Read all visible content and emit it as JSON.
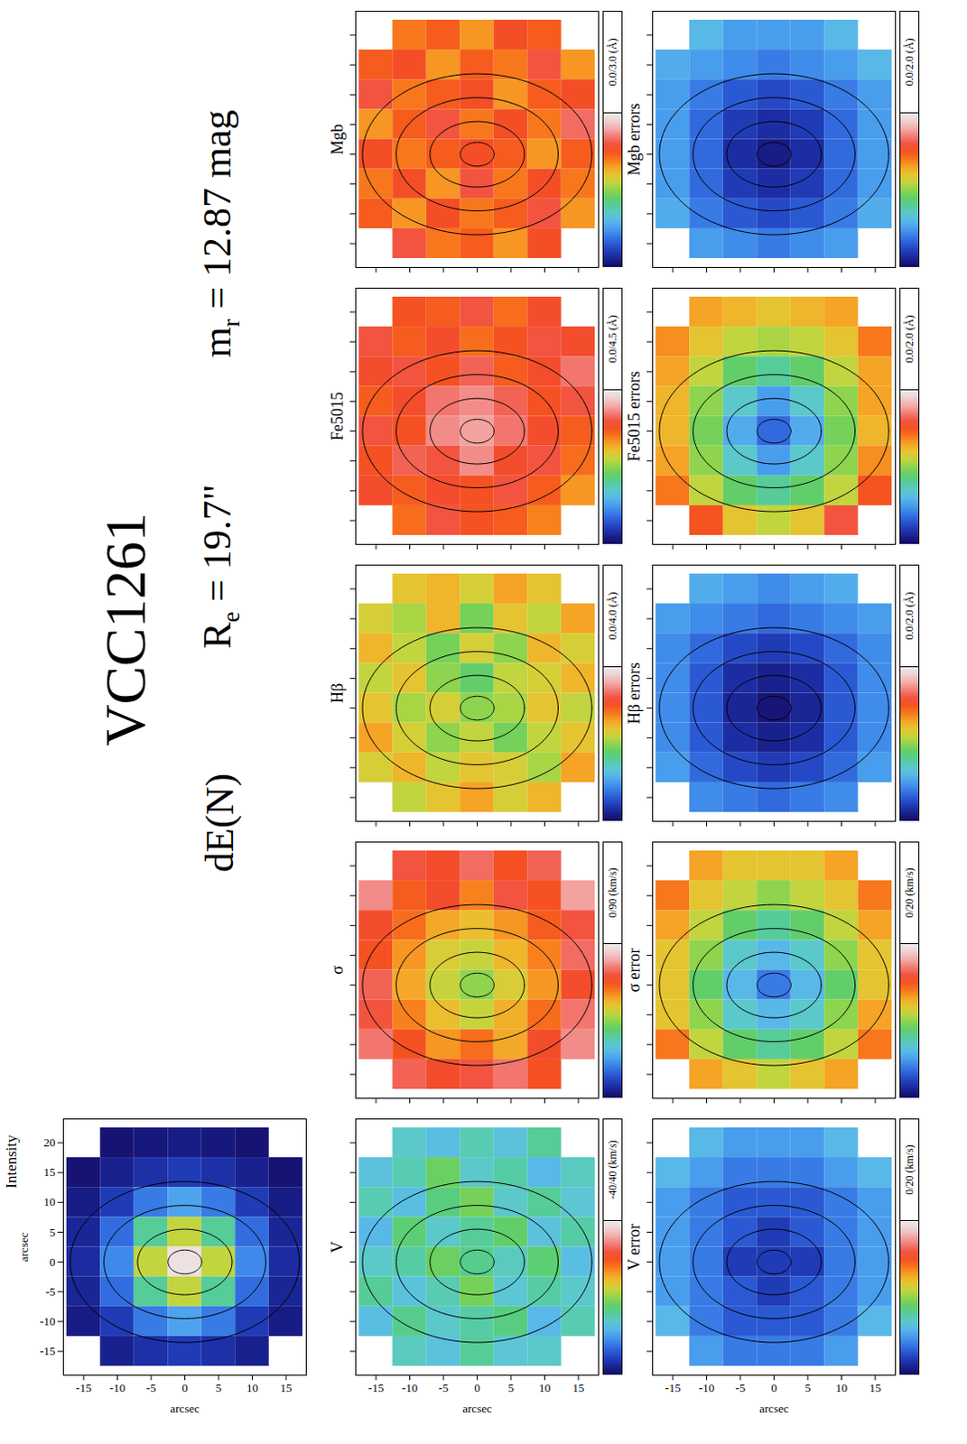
{
  "header": {
    "title": "VCC1261",
    "class": "dE(N)",
    "radius": {
      "symbol": "R",
      "sub": "e",
      "text": " = 19.7\""
    },
    "magnitude": {
      "symbol": "m",
      "sub": "r",
      "text": " = 12.87 mag"
    }
  },
  "contours": [
    {
      "a": 2.5,
      "b": 2
    },
    {
      "a": 7,
      "b": 5.5
    },
    {
      "a": 12,
      "b": 9.5
    },
    {
      "a": 17,
      "b": 13.5
    }
  ],
  "chart_data": [
    {
      "type": "map",
      "title": "Intensity",
      "x": [
        -15,
        -10,
        -5,
        0,
        5,
        10,
        15
      ],
      "y": [
        20,
        15,
        10,
        5,
        0,
        -5,
        -10,
        -15
      ],
      "values": [
        [
          null,
          0.02,
          0.03,
          0.04,
          0.03,
          0.02,
          null
        ],
        [
          0.02,
          0.05,
          0.08,
          0.1,
          0.08,
          0.05,
          0.02
        ],
        [
          0.04,
          0.1,
          0.2,
          0.26,
          0.2,
          0.1,
          0.04
        ],
        [
          0.06,
          0.18,
          0.4,
          0.55,
          0.4,
          0.18,
          0.06
        ],
        [
          0.07,
          0.22,
          0.55,
          0.98,
          0.55,
          0.22,
          0.07
        ],
        [
          0.06,
          0.18,
          0.4,
          0.55,
          0.4,
          0.18,
          0.06
        ],
        [
          0.04,
          0.1,
          0.2,
          0.26,
          0.2,
          0.1,
          0.04
        ],
        [
          null,
          0.05,
          0.08,
          0.1,
          0.08,
          0.05,
          null
        ]
      ],
      "xlim": [
        -18,
        18
      ],
      "ylim": [
        -19,
        24
      ],
      "xticks": [
        -15,
        -10,
        -5,
        0,
        5,
        10,
        15
      ],
      "yticks": [
        -15,
        -10,
        -5,
        0,
        5,
        10,
        15,
        20
      ],
      "xlabel": "arcsec",
      "ylabel": "arcsec",
      "color_range": [
        0,
        1
      ]
    },
    {
      "type": "map",
      "title": "V",
      "x": [
        -15,
        -10,
        -5,
        0,
        5,
        10,
        15
      ],
      "y": [
        20,
        15,
        10,
        5,
        0,
        -5,
        -10,
        -15
      ],
      "values": [
        [
          null,
          -12,
          -15,
          -10,
          -14,
          -8,
          null
        ],
        [
          -14,
          -10,
          -3,
          -12,
          -9,
          -16,
          -11
        ],
        [
          -10,
          -15,
          -6,
          -2,
          -12,
          -8,
          -13
        ],
        [
          -16,
          -5,
          -12,
          -8,
          -4,
          -14,
          -9
        ],
        [
          -12,
          -9,
          -3,
          -7,
          -11,
          -5,
          -15
        ],
        [
          -8,
          -14,
          -10,
          -2,
          -13,
          -9,
          -12
        ],
        [
          -15,
          -7,
          -12,
          -9,
          -6,
          -16,
          -10
        ],
        [
          null,
          -11,
          -14,
          -8,
          -13,
          -12,
          null
        ]
      ],
      "xlim": [
        -18,
        18
      ],
      "ylim": [
        -19,
        24
      ],
      "xticks": [
        -15,
        -10,
        -5,
        0,
        5,
        10,
        15
      ],
      "yticks": [
        -15,
        -10,
        -5,
        0,
        5,
        10,
        15,
        20
      ],
      "xlabel": "arcsec",
      "tick_labels": "x",
      "colorbar": {
        "label": "-40/40 (km/s)",
        "range": [
          -40,
          40
        ]
      }
    },
    {
      "type": "map",
      "title": "σ",
      "x": [
        -15,
        -10,
        -5,
        0,
        5,
        10,
        15
      ],
      "y": [
        20,
        15,
        10,
        5,
        0,
        -5,
        -10,
        -15
      ],
      "values": [
        [
          null,
          72,
          70,
          75,
          68,
          74,
          null
        ],
        [
          78,
          66,
          70,
          62,
          72,
          68,
          80
        ],
        [
          70,
          64,
          58,
          55,
          60,
          66,
          72
        ],
        [
          68,
          60,
          52,
          50,
          56,
          62,
          75
        ],
        [
          74,
          58,
          50,
          45,
          52,
          60,
          70
        ],
        [
          72,
          62,
          55,
          50,
          57,
          64,
          76
        ],
        [
          76,
          68,
          60,
          64,
          58,
          70,
          78
        ],
        [
          null,
          74,
          70,
          72,
          76,
          68,
          null
        ]
      ],
      "xlim": [
        -18,
        18
      ],
      "ylim": [
        -19,
        24
      ],
      "xticks": [
        -15,
        -10,
        -5,
        0,
        5,
        10,
        15
      ],
      "yticks": [
        -15,
        -10,
        -5,
        0,
        5,
        10,
        15,
        20
      ],
      "tick_labels": false,
      "colorbar": {
        "label": "0/90 (km/s)",
        "range": [
          0,
          90
        ]
      }
    },
    {
      "type": "map",
      "title": "Hβ",
      "x": [
        -15,
        -10,
        -5,
        0,
        5,
        10,
        15
      ],
      "y": [
        20,
        15,
        10,
        5,
        0,
        -5,
        -10,
        -15
      ],
      "values": [
        [
          null,
          2.4,
          2.5,
          2.3,
          2.6,
          2.4,
          null
        ],
        [
          2.3,
          2.1,
          2.5,
          1.9,
          2.4,
          2.2,
          2.6
        ],
        [
          2.5,
          2.2,
          1.9,
          2.3,
          2.0,
          2.5,
          2.3
        ],
        [
          2.2,
          2.4,
          2.0,
          1.8,
          2.2,
          2.3,
          2.5
        ],
        [
          2.4,
          2.1,
          2.3,
          2.0,
          2.1,
          2.4,
          2.2
        ],
        [
          2.6,
          2.3,
          2.0,
          2.2,
          1.9,
          2.2,
          2.4
        ],
        [
          2.3,
          2.5,
          2.2,
          2.4,
          2.3,
          2.1,
          2.6
        ],
        [
          null,
          2.2,
          2.4,
          2.6,
          2.3,
          2.5,
          null
        ]
      ],
      "xlim": [
        -18,
        18
      ],
      "ylim": [
        -19,
        24
      ],
      "xticks": [
        -15,
        -10,
        -5,
        0,
        5,
        10,
        15
      ],
      "yticks": [
        -15,
        -10,
        -5,
        0,
        5,
        10,
        15,
        20
      ],
      "tick_labels": false,
      "colorbar": {
        "label": "0.0/4.0 (Å)",
        "range": [
          0,
          4
        ]
      }
    },
    {
      "type": "map",
      "title": "Fe5015",
      "x": [
        -15,
        -10,
        -5,
        0,
        5,
        10,
        15
      ],
      "y": [
        20,
        15,
        10,
        5,
        0,
        -5,
        -10,
        -15
      ],
      "values": [
        [
          null,
          3.4,
          3.3,
          3.6,
          3.2,
          3.5,
          null
        ],
        [
          3.6,
          3.3,
          3.5,
          3.2,
          3.4,
          3.6,
          3.5
        ],
        [
          3.5,
          3.6,
          3.4,
          3.7,
          3.3,
          3.5,
          3.8
        ],
        [
          3.3,
          3.5,
          3.8,
          3.9,
          3.7,
          3.4,
          3.6
        ],
        [
          3.6,
          3.4,
          3.9,
          4.0,
          3.8,
          3.5,
          3.3
        ],
        [
          3.4,
          3.7,
          3.6,
          3.9,
          3.5,
          3.6,
          3.2
        ],
        [
          3.5,
          3.3,
          3.5,
          3.4,
          3.6,
          3.3,
          3.0
        ],
        [
          null,
          3.2,
          3.6,
          3.4,
          3.3,
          3.1,
          null
        ]
      ],
      "xlim": [
        -18,
        18
      ],
      "ylim": [
        -19,
        24
      ],
      "xticks": [
        -15,
        -10,
        -5,
        0,
        5,
        10,
        15
      ],
      "yticks": [
        -15,
        -10,
        -5,
        0,
        5,
        10,
        15,
        20
      ],
      "tick_labels": false,
      "colorbar": {
        "label": "0.0/4.5 (Å)",
        "range": [
          0,
          4.5
        ]
      }
    },
    {
      "type": "map",
      "title": "Mgb",
      "x": [
        -15,
        -10,
        -5,
        0,
        5,
        10,
        15
      ],
      "y": [
        20,
        15,
        10,
        5,
        0,
        -5,
        -10,
        -15
      ],
      "values": [
        [
          null,
          2.1,
          2.2,
          2.0,
          2.3,
          2.2,
          null
        ],
        [
          2.2,
          2.3,
          2.0,
          2.2,
          2.1,
          2.4,
          2.0
        ],
        [
          2.4,
          2.1,
          2.2,
          2.3,
          2.0,
          2.2,
          2.3
        ],
        [
          2.0,
          2.2,
          2.4,
          2.1,
          2.3,
          2.1,
          2.5
        ],
        [
          2.3,
          2.1,
          2.2,
          2.3,
          2.2,
          2.0,
          2.2
        ],
        [
          2.1,
          2.3,
          2.0,
          2.4,
          2.1,
          2.3,
          2.1
        ],
        [
          2.2,
          2.0,
          2.3,
          2.1,
          2.2,
          2.4,
          2.0
        ],
        [
          null,
          2.4,
          2.1,
          2.2,
          2.0,
          2.3,
          null
        ]
      ],
      "xlim": [
        -18,
        18
      ],
      "ylim": [
        -19,
        24
      ],
      "xticks": [
        -15,
        -10,
        -5,
        0,
        5,
        10,
        15
      ],
      "yticks": [
        -15,
        -10,
        -5,
        0,
        5,
        10,
        15,
        20
      ],
      "tick_labels": false,
      "colorbar": {
        "label": "0.0/3.0 (Å)",
        "range": [
          0,
          3
        ]
      }
    },
    {
      "type": "map",
      "title": "V error",
      "x": [
        -15,
        -10,
        -5,
        0,
        5,
        10,
        15
      ],
      "y": [
        20,
        15,
        10,
        5,
        0,
        -5,
        -10,
        -15
      ],
      "values": [
        [
          null,
          6,
          5,
          5,
          5,
          6,
          null
        ],
        [
          6,
          5,
          4,
          4,
          4,
          5,
          6
        ],
        [
          5,
          4,
          3,
          3,
          3,
          4,
          5
        ],
        [
          5,
          4,
          3,
          2,
          3,
          4,
          5
        ],
        [
          5,
          4,
          2,
          2,
          2,
          4,
          5
        ],
        [
          5,
          4,
          3,
          2,
          3,
          4,
          5
        ],
        [
          6,
          4,
          3,
          3,
          3,
          4,
          6
        ],
        [
          null,
          5,
          4,
          4,
          4,
          5,
          null
        ]
      ],
      "xlim": [
        -18,
        18
      ],
      "ylim": [
        -19,
        24
      ],
      "xticks": [
        -15,
        -10,
        -5,
        0,
        5,
        10,
        15
      ],
      "yticks": [
        -15,
        -10,
        -5,
        0,
        5,
        10,
        15,
        20
      ],
      "xlabel": "arcsec",
      "tick_labels": "x",
      "colorbar": {
        "label": "0/20 (km/s)",
        "range": [
          0,
          20
        ]
      }
    },
    {
      "type": "map",
      "title": "σ error",
      "x": [
        -15,
        -10,
        -5,
        0,
        5,
        10,
        15
      ],
      "y": [
        20,
        15,
        10,
        5,
        0,
        -5,
        -10,
        -15
      ],
      "values": [
        [
          null,
          13,
          12,
          12,
          12,
          13,
          null
        ],
        [
          14,
          12,
          11,
          10,
          11,
          12,
          14
        ],
        [
          13,
          11,
          9,
          8,
          9,
          11,
          13
        ],
        [
          12,
          10,
          7,
          6,
          7,
          10,
          12
        ],
        [
          12,
          9,
          6,
          4,
          6,
          9,
          12
        ],
        [
          12,
          10,
          7,
          6,
          7,
          10,
          13
        ],
        [
          14,
          11,
          9,
          8,
          9,
          11,
          14
        ],
        [
          null,
          13,
          12,
          11,
          12,
          13,
          null
        ]
      ],
      "xlim": [
        -18,
        18
      ],
      "ylim": [
        -19,
        24
      ],
      "xticks": [
        -15,
        -10,
        -5,
        0,
        5,
        10,
        15
      ],
      "yticks": [
        -15,
        -10,
        -5,
        0,
        5,
        10,
        15,
        20
      ],
      "tick_labels": false,
      "colorbar": {
        "label": "0/20 (km/s)",
        "range": [
          0,
          20
        ]
      }
    },
    {
      "type": "map",
      "title": "Hβ errors",
      "x": [
        -15,
        -10,
        -5,
        0,
        5,
        10,
        15
      ],
      "y": [
        20,
        15,
        10,
        5,
        0,
        -5,
        -10,
        -15
      ],
      "values": [
        [
          null,
          0.55,
          0.5,
          0.45,
          0.5,
          0.55,
          null
        ],
        [
          0.5,
          0.45,
          0.4,
          0.35,
          0.4,
          0.45,
          0.5
        ],
        [
          0.45,
          0.35,
          0.25,
          0.2,
          0.25,
          0.35,
          0.45
        ],
        [
          0.45,
          0.3,
          0.15,
          0.1,
          0.15,
          0.3,
          0.45
        ],
        [
          0.45,
          0.3,
          0.12,
          0.05,
          0.12,
          0.3,
          0.45
        ],
        [
          0.45,
          0.3,
          0.15,
          0.1,
          0.15,
          0.3,
          0.45
        ],
        [
          0.5,
          0.35,
          0.25,
          0.2,
          0.25,
          0.35,
          0.5
        ],
        [
          null,
          0.45,
          0.4,
          0.35,
          0.4,
          0.45,
          null
        ]
      ],
      "xlim": [
        -18,
        18
      ],
      "ylim": [
        -19,
        24
      ],
      "xticks": [
        -15,
        -10,
        -5,
        0,
        5,
        10,
        15
      ],
      "yticks": [
        -15,
        -10,
        -5,
        0,
        5,
        10,
        15,
        20
      ],
      "tick_labels": false,
      "colorbar": {
        "label": "0.0/2.0 (Å)",
        "range": [
          0,
          2
        ]
      }
    },
    {
      "type": "map",
      "title": "Fe5015 errors",
      "x": [
        -15,
        -10,
        -5,
        0,
        5,
        10,
        15
      ],
      "y": [
        20,
        15,
        10,
        5,
        0,
        -5,
        -10,
        -15
      ],
      "values": [
        [
          null,
          1.3,
          1.25,
          1.2,
          1.25,
          1.3,
          null
        ],
        [
          1.35,
          1.2,
          1.1,
          1.05,
          1.1,
          1.2,
          1.4
        ],
        [
          1.3,
          1.1,
          0.9,
          0.8,
          0.9,
          1.1,
          1.3
        ],
        [
          1.25,
          1.0,
          0.7,
          0.5,
          0.7,
          1.0,
          1.3
        ],
        [
          1.25,
          0.95,
          0.55,
          0.35,
          0.55,
          0.95,
          1.25
        ],
        [
          1.3,
          1.0,
          0.7,
          0.5,
          0.7,
          1.0,
          1.35
        ],
        [
          1.4,
          1.1,
          0.9,
          0.8,
          0.9,
          1.1,
          1.5
        ],
        [
          null,
          1.5,
          1.2,
          1.1,
          1.2,
          1.6,
          null
        ]
      ],
      "xlim": [
        -18,
        18
      ],
      "ylim": [
        -19,
        24
      ],
      "xticks": [
        -15,
        -10,
        -5,
        0,
        5,
        10,
        15
      ],
      "yticks": [
        -15,
        -10,
        -5,
        0,
        5,
        10,
        15,
        20
      ],
      "tick_labels": false,
      "colorbar": {
        "label": "0.0/2.0 (Å)",
        "range": [
          0,
          2
        ]
      }
    },
    {
      "type": "map",
      "title": "Mgb errors",
      "x": [
        -15,
        -10,
        -5,
        0,
        5,
        10,
        15
      ],
      "y": [
        20,
        15,
        10,
        5,
        0,
        -5,
        -10,
        -15
      ],
      "values": [
        [
          null,
          0.6,
          0.5,
          0.5,
          0.5,
          0.6,
          null
        ],
        [
          0.55,
          0.5,
          0.45,
          0.4,
          0.45,
          0.5,
          0.6
        ],
        [
          0.5,
          0.4,
          0.3,
          0.25,
          0.3,
          0.4,
          0.5
        ],
        [
          0.5,
          0.35,
          0.2,
          0.15,
          0.2,
          0.35,
          0.5
        ],
        [
          0.5,
          0.35,
          0.15,
          0.08,
          0.15,
          0.35,
          0.5
        ],
        [
          0.5,
          0.35,
          0.2,
          0.15,
          0.2,
          0.35,
          0.5
        ],
        [
          0.55,
          0.4,
          0.3,
          0.25,
          0.3,
          0.4,
          0.55
        ],
        [
          null,
          0.5,
          0.45,
          0.4,
          0.45,
          0.5,
          null
        ]
      ],
      "xlim": [
        -18,
        18
      ],
      "ylim": [
        -19,
        24
      ],
      "xticks": [
        -15,
        -10,
        -5,
        0,
        5,
        10,
        15
      ],
      "yticks": [
        -15,
        -10,
        -5,
        0,
        5,
        10,
        15,
        20
      ],
      "tick_labels": false,
      "colorbar": {
        "label": "0.0/2.0 (Å)",
        "range": [
          0,
          2
        ]
      }
    }
  ]
}
